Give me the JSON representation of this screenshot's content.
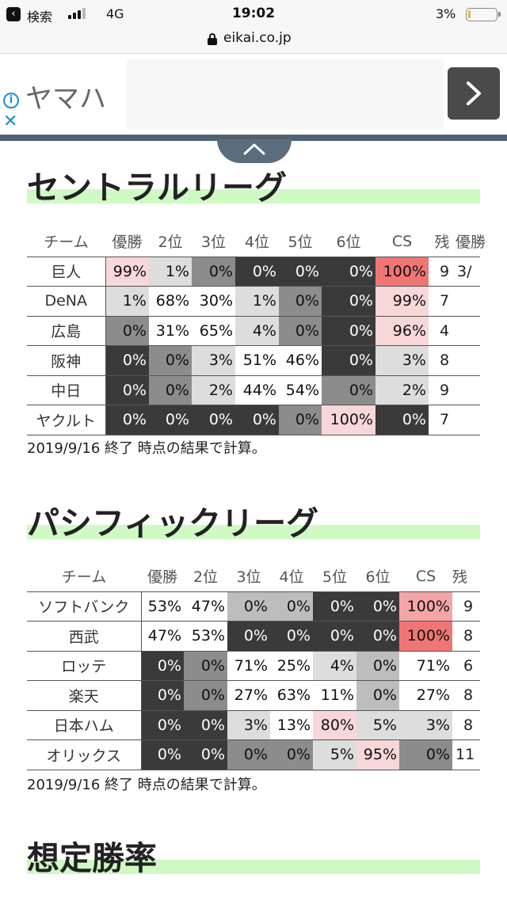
{
  "status_bar": {
    "back_label": "検索",
    "network": "4G",
    "time": "19:02",
    "battery": "3%"
  },
  "url_bar": {
    "url": "eikai.co.jp"
  },
  "ad": {
    "title": "ヤマハ",
    "info_icon": "i",
    "close_icon": "✕"
  },
  "central": {
    "title": "セントラルリーグ",
    "headers": [
      "チーム",
      "優勝",
      "2位",
      "3位",
      "4位",
      "5位",
      "6位",
      "CS",
      "残",
      "優勝"
    ],
    "rows": [
      {
        "team": "巨人",
        "cells": [
          "99%",
          "1%",
          "0%",
          "0%",
          "0%",
          "0%",
          "100%"
        ],
        "rest": "9",
        "extra": "3/"
      },
      {
        "team": "DeNA",
        "cells": [
          "1%",
          "68%",
          "30%",
          "1%",
          "0%",
          "0%",
          "99%"
        ],
        "rest": "7",
        "extra": ""
      },
      {
        "team": "広島",
        "cells": [
          "0%",
          "31%",
          "65%",
          "4%",
          "0%",
          "0%",
          "96%"
        ],
        "rest": "4",
        "extra": ""
      },
      {
        "team": "阪神",
        "cells": [
          "0%",
          "0%",
          "3%",
          "51%",
          "46%",
          "0%",
          "3%"
        ],
        "rest": "8",
        "extra": ""
      },
      {
        "team": "中日",
        "cells": [
          "0%",
          "0%",
          "2%",
          "44%",
          "54%",
          "0%",
          "2%"
        ],
        "rest": "9",
        "extra": ""
      },
      {
        "team": "ヤクルト",
        "cells": [
          "0%",
          "0%",
          "0%",
          "0%",
          "0%",
          "100%",
          "0%"
        ],
        "rest": "7",
        "extra": ""
      }
    ],
    "note": "2019/9/16 終了 時点の結果で計算。"
  },
  "pacific": {
    "title": "パシフィックリーグ",
    "headers": [
      "チーム",
      "優勝",
      "2位",
      "3位",
      "4位",
      "5位",
      "6位",
      "CS",
      "残"
    ],
    "rows": [
      {
        "team": "ソフトバンク",
        "cells": [
          "53%",
          "47%",
          "0%",
          "0%",
          "0%",
          "0%",
          "100%"
        ],
        "rest": "9"
      },
      {
        "team": "西武",
        "cells": [
          "47%",
          "53%",
          "0%",
          "0%",
          "0%",
          "0%",
          "100%"
        ],
        "rest": "8"
      },
      {
        "team": "ロッテ",
        "cells": [
          "0%",
          "0%",
          "71%",
          "25%",
          "4%",
          "0%",
          "71%"
        ],
        "rest": "6"
      },
      {
        "team": "楽天",
        "cells": [
          "0%",
          "0%",
          "27%",
          "63%",
          "11%",
          "0%",
          "27%"
        ],
        "rest": "8"
      },
      {
        "team": "日本ハム",
        "cells": [
          "0%",
          "0%",
          "3%",
          "13%",
          "80%",
          "5%",
          "3%"
        ],
        "rest": "8"
      },
      {
        "team": "オリックス",
        "cells": [
          "0%",
          "0%",
          "0%",
          "0%",
          "5%",
          "95%",
          "0%"
        ],
        "rest": "11"
      }
    ],
    "note": "2019/9/16 終了 時点の結果で計算。"
  },
  "win_rate": {
    "title": "想定勝率"
  }
}
